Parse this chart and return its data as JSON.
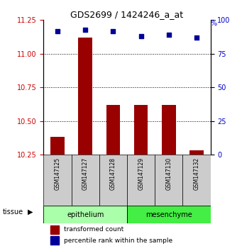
{
  "title": "GDS2699 / 1424246_a_at",
  "samples": [
    "GSM147125",
    "GSM147127",
    "GSM147128",
    "GSM147129",
    "GSM147130",
    "GSM147132"
  ],
  "bar_values": [
    10.38,
    11.12,
    10.62,
    10.62,
    10.62,
    10.28
  ],
  "dot_values": [
    92,
    93,
    92,
    88,
    89,
    87
  ],
  "bar_bottom": 10.25,
  "ylim_left": [
    10.25,
    11.25
  ],
  "ylim_right": [
    0,
    100
  ],
  "yticks_left": [
    10.25,
    10.5,
    10.75,
    11.0,
    11.25
  ],
  "yticks_right": [
    0,
    25,
    50,
    75,
    100
  ],
  "grid_lines": [
    11.0,
    10.75,
    10.5
  ],
  "bar_color": "#990000",
  "dot_color": "#000099",
  "bar_width": 0.5,
  "ylabel_left_color": "#CC0000",
  "ylabel_right_color": "#0000CC",
  "legend_bar_label": "transformed count",
  "legend_dot_label": "percentile rank within the sample",
  "tissue_label": "tissue",
  "epithelium_color": "#aaffaa",
  "mesenchyme_color": "#44ee44",
  "sample_box_color": "#cccccc",
  "bg_color": "#ffffff"
}
